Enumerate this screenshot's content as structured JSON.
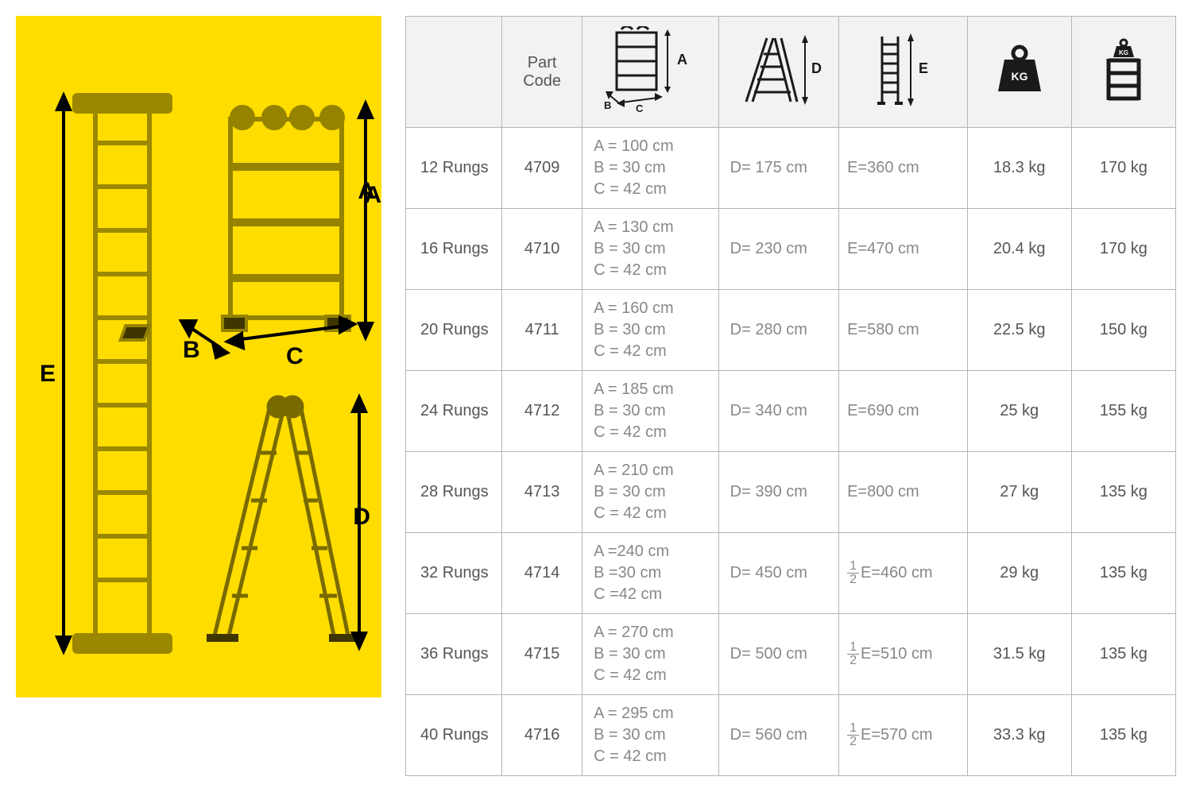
{
  "diagram": {
    "bg_color": "#ffdd00",
    "labels": {
      "A": "A",
      "B": "B",
      "C": "C",
      "D": "D",
      "E": "E"
    },
    "label_color": "#000000",
    "label_fontsize": 30,
    "arrow_color": "#000000"
  },
  "table": {
    "border_color": "#b5b5b5",
    "header_bg": "#f2f2f2",
    "text_color": "#555555",
    "muted_color": "#888888",
    "fontsize": 20,
    "columns": {
      "rungs_blank": "",
      "part_code": "Part\nCode",
      "abc_icon_label": "A",
      "abc_icon_sub_b": "B",
      "abc_icon_sub_c": "C",
      "d_icon_label": "D",
      "e_icon_label": "E",
      "kg_icon_label": "KG",
      "cap_icon_label": "KG"
    },
    "rows": [
      {
        "rungs": "12 Rungs",
        "code": "4709",
        "abc": "A = 100 cm\nB = 30 cm\nC = 42 cm",
        "d": "D= 175 cm",
        "e_prefix": "",
        "e": "E=360 cm",
        "weight": "18.3 kg",
        "capacity": "170 kg"
      },
      {
        "rungs": "16 Rungs",
        "code": "4710",
        "abc": "A = 130 cm\nB = 30 cm\nC = 42 cm",
        "d": "D= 230 cm",
        "e_prefix": "",
        "e": "E=470 cm",
        "weight": "20.4 kg",
        "capacity": "170 kg"
      },
      {
        "rungs": "20 Rungs",
        "code": "4711",
        "abc": "A = 160 cm\nB = 30 cm\nC = 42 cm",
        "d": "D= 280 cm",
        "e_prefix": "",
        "e": "E=580 cm",
        "weight": "22.5 kg",
        "capacity": "150 kg"
      },
      {
        "rungs": "24 Rungs",
        "code": "4712",
        "abc": "A = 185 cm\nB = 30 cm\nC = 42 cm",
        "d": "D= 340 cm",
        "e_prefix": "",
        "e": "E=690 cm",
        "weight": "25 kg",
        "capacity": "155 kg"
      },
      {
        "rungs": "28 Rungs",
        "code": "4713",
        "abc": "A = 210 cm\nB = 30 cm\nC = 42 cm",
        "d": "D= 390 cm",
        "e_prefix": "",
        "e": "E=800 cm",
        "weight": "27 kg",
        "capacity": "135 kg"
      },
      {
        "rungs": "32 Rungs",
        "code": "4714",
        "abc": "A =240 cm\nB =30 cm\nC =42 cm",
        "d": "D= 450 cm",
        "e_prefix": "half",
        "e": "E=460 cm",
        "weight": "29 kg",
        "capacity": "135 kg"
      },
      {
        "rungs": "36 Rungs",
        "code": "4715",
        "abc": "A = 270 cm\nB = 30 cm\nC = 42 cm",
        "d": "D= 500 cm",
        "e_prefix": "half",
        "e": "E=510 cm",
        "weight": "31.5 kg",
        "capacity": "135 kg"
      },
      {
        "rungs": "40 Rungs",
        "code": "4716",
        "abc": "A = 295 cm\nB = 30 cm\nC = 42 cm",
        "d": "D= 560 cm",
        "e_prefix": "half",
        "e": "E=570 cm",
        "weight": "33.3 kg",
        "capacity": "135 kg"
      }
    ]
  }
}
